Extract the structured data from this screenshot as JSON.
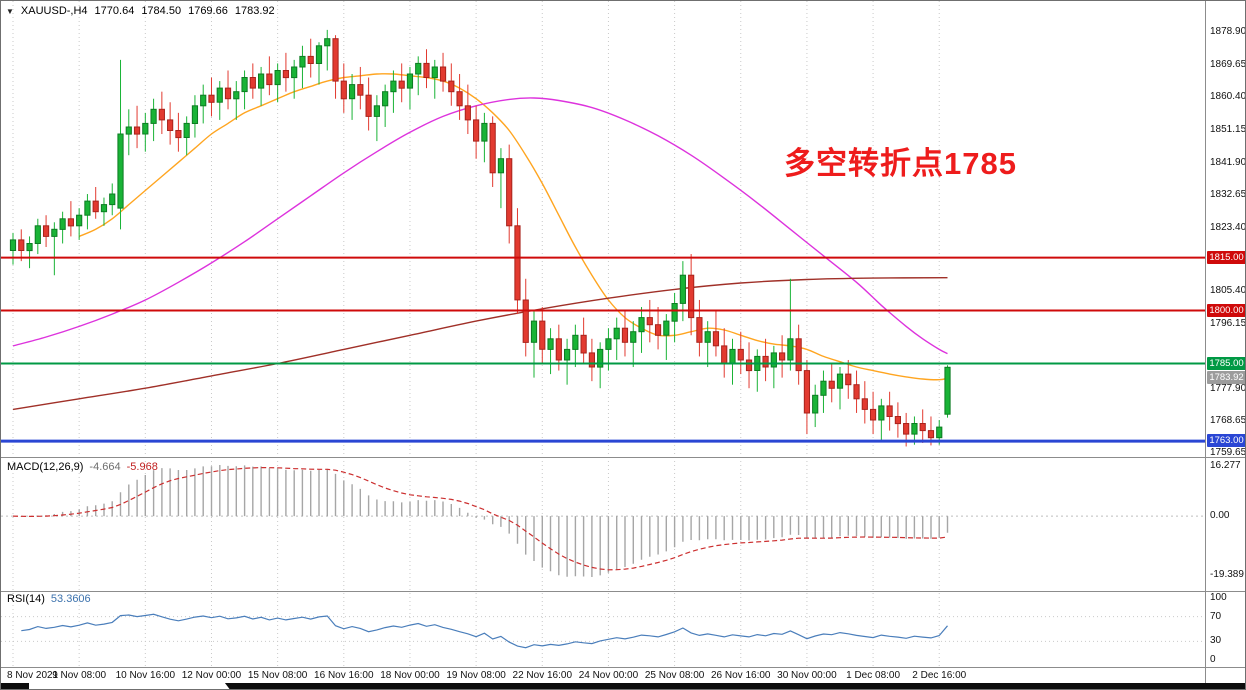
{
  "header": {
    "expander_icon": "▼",
    "symbol_timeframe": "XAUUSD-,H4",
    "open": "1770.64",
    "high": "1784.50",
    "low": "1769.66",
    "close": "1783.92"
  },
  "annotation": {
    "text": "多空转折点1785",
    "color": "#ee1c1c"
  },
  "colors": {
    "candle_up": "#19b336",
    "candle_up_border": "#0c7c22",
    "candle_down": "#e23a30",
    "candle_down_border": "#a8231c",
    "ma_fast": "#ffa520",
    "ma_mid": "#dd33dd",
    "ma_slow": "#a03028",
    "grid": "#c9c9c9",
    "macd_hist": "#a6a6a6",
    "macd_signal": "#cc2f2f",
    "rsi_line": "#4a7ebb"
  },
  "chart_data": {
    "type": "candlestick",
    "symbol": "XAUUSD-",
    "timeframe": "H4",
    "x_labels": [
      "8 Nov 2021",
      "9 Nov 08:00",
      "10 Nov 16:00",
      "12 Nov 00:00",
      "15 Nov 08:00",
      "16 Nov 16:00",
      "18 Nov 00:00",
      "19 Nov 08:00",
      "22 Nov 16:00",
      "24 Nov 00:00",
      "25 Nov 08:00",
      "26 Nov 16:00",
      "30 Nov 00:00",
      "1 Dec 08:00",
      "2 Dec 16:00"
    ],
    "price_axis_labels": [
      1878.9,
      1869.65,
      1860.4,
      1851.15,
      1841.9,
      1832.65,
      1823.4,
      1805.4,
      1796.15,
      1777.9,
      1768.65,
      1759.65
    ],
    "ylim": [
      1759.65,
      1878.9
    ],
    "grid": true,
    "levels": [
      {
        "value": 1815.0,
        "label": "1815.00",
        "color": "#cf0a0a",
        "width": 2
      },
      {
        "value": 1800.0,
        "label": "1800.00",
        "color": "#cf0a0a",
        "width": 2
      },
      {
        "value": 1785.0,
        "label": "1785.00",
        "color": "#009944",
        "width": 2
      },
      {
        "value": 1763.0,
        "label": "1763.00",
        "color": "#2a46d4",
        "width": 3
      }
    ],
    "current_price_badge": {
      "label": "1783.92",
      "color": "#9c9c9c"
    },
    "candles": [
      [
        1817,
        1822,
        1813,
        1820
      ],
      [
        1820,
        1823,
        1814,
        1817
      ],
      [
        1817,
        1821,
        1812,
        1819
      ],
      [
        1819,
        1826,
        1816,
        1824
      ],
      [
        1824,
        1827,
        1818,
        1821
      ],
      [
        1821,
        1825,
        1810,
        1823
      ],
      [
        1823,
        1828,
        1819,
        1826
      ],
      [
        1826,
        1831,
        1821,
        1824
      ],
      [
        1824,
        1829,
        1820,
        1827
      ],
      [
        1827,
        1833,
        1823,
        1831
      ],
      [
        1831,
        1835,
        1826,
        1828
      ],
      [
        1828,
        1832,
        1824,
        1830
      ],
      [
        1830,
        1836,
        1827,
        1833
      ],
      [
        1829,
        1871,
        1823,
        1850
      ],
      [
        1850,
        1857,
        1844,
        1852
      ],
      [
        1852,
        1858,
        1846,
        1850
      ],
      [
        1850,
        1856,
        1845,
        1853
      ],
      [
        1853,
        1860,
        1848,
        1857
      ],
      [
        1857,
        1862,
        1850,
        1854
      ],
      [
        1854,
        1859,
        1847,
        1851
      ],
      [
        1851,
        1856,
        1845,
        1849
      ],
      [
        1849,
        1855,
        1844,
        1853
      ],
      [
        1853,
        1861,
        1849,
        1858
      ],
      [
        1858,
        1864,
        1853,
        1861
      ],
      [
        1861,
        1866,
        1855,
        1859
      ],
      [
        1859,
        1865,
        1854,
        1863
      ],
      [
        1863,
        1868,
        1857,
        1860
      ],
      [
        1860,
        1865,
        1854,
        1862
      ],
      [
        1862,
        1868,
        1857,
        1866
      ],
      [
        1866,
        1870,
        1860,
        1863
      ],
      [
        1863,
        1869,
        1858,
        1867
      ],
      [
        1867,
        1872,
        1861,
        1864
      ],
      [
        1864,
        1870,
        1859,
        1868
      ],
      [
        1868,
        1873,
        1862,
        1866
      ],
      [
        1866,
        1871,
        1860,
        1869
      ],
      [
        1869,
        1875,
        1863,
        1872
      ],
      [
        1872,
        1877,
        1866,
        1870
      ],
      [
        1870,
        1876,
        1864,
        1875
      ],
      [
        1875,
        1879.5,
        1868,
        1877
      ],
      [
        1877,
        1878,
        1860,
        1865
      ],
      [
        1865,
        1870,
        1856,
        1860
      ],
      [
        1860,
        1867,
        1854,
        1864
      ],
      [
        1864,
        1869,
        1857,
        1861
      ],
      [
        1861,
        1866,
        1851,
        1855
      ],
      [
        1855,
        1861,
        1848,
        1858
      ],
      [
        1858,
        1864,
        1852,
        1862
      ],
      [
        1862,
        1868,
        1856,
        1865
      ],
      [
        1865,
        1870,
        1859,
        1863
      ],
      [
        1863,
        1869,
        1857,
        1867
      ],
      [
        1867,
        1872,
        1861,
        1870
      ],
      [
        1870,
        1874,
        1863,
        1866
      ],
      [
        1866,
        1871,
        1860,
        1869
      ],
      [
        1869,
        1873,
        1862,
        1865
      ],
      [
        1865,
        1870,
        1858,
        1862
      ],
      [
        1862,
        1867,
        1854,
        1858
      ],
      [
        1858,
        1864,
        1850,
        1854
      ],
      [
        1854,
        1858,
        1843,
        1848
      ],
      [
        1848,
        1856,
        1842,
        1853
      ],
      [
        1853,
        1855,
        1835,
        1839
      ],
      [
        1839,
        1846,
        1829,
        1843
      ],
      [
        1843,
        1847,
        1819,
        1824
      ],
      [
        1824,
        1829,
        1799,
        1803
      ],
      [
        1803,
        1809,
        1787,
        1791
      ],
      [
        1791,
        1800,
        1781,
        1797
      ],
      [
        1797,
        1801,
        1785,
        1789
      ],
      [
        1789,
        1795,
        1782,
        1792
      ],
      [
        1792,
        1796,
        1783,
        1786
      ],
      [
        1786,
        1792,
        1779,
        1789
      ],
      [
        1789,
        1796,
        1784,
        1793
      ],
      [
        1793,
        1798,
        1785,
        1788
      ],
      [
        1788,
        1792,
        1780,
        1784
      ],
      [
        1784,
        1791,
        1778,
        1789
      ],
      [
        1789,
        1795,
        1783,
        1792
      ],
      [
        1792,
        1798,
        1786,
        1795
      ],
      [
        1795,
        1800,
        1787,
        1791
      ],
      [
        1791,
        1797,
        1784,
        1794
      ],
      [
        1794,
        1801,
        1788,
        1798
      ],
      [
        1798,
        1803,
        1791,
        1796
      ],
      [
        1796,
        1801,
        1789,
        1793
      ],
      [
        1793,
        1799,
        1786,
        1797
      ],
      [
        1797,
        1805,
        1791,
        1802
      ],
      [
        1802,
        1814,
        1797,
        1810
      ],
      [
        1810,
        1816,
        1793,
        1798
      ],
      [
        1798,
        1803,
        1787,
        1791
      ],
      [
        1791,
        1797,
        1784,
        1794
      ],
      [
        1794,
        1800,
        1787,
        1790
      ],
      [
        1790,
        1795,
        1781,
        1785
      ],
      [
        1785,
        1792,
        1779,
        1789
      ],
      [
        1789,
        1794,
        1782,
        1786
      ],
      [
        1786,
        1791,
        1778,
        1783
      ],
      [
        1783,
        1789,
        1777,
        1787
      ],
      [
        1787,
        1792,
        1780,
        1784
      ],
      [
        1784,
        1790,
        1778,
        1788
      ],
      [
        1788,
        1793,
        1781,
        1786
      ],
      [
        1786,
        1809,
        1783,
        1792
      ],
      [
        1792,
        1796,
        1779,
        1783
      ],
      [
        1783,
        1786,
        1765,
        1771
      ],
      [
        1771,
        1779,
        1767,
        1776
      ],
      [
        1776,
        1783,
        1771,
        1780
      ],
      [
        1780,
        1785,
        1774,
        1778
      ],
      [
        1778,
        1784,
        1772,
        1782
      ],
      [
        1782,
        1786,
        1775,
        1779
      ],
      [
        1779,
        1783,
        1771,
        1775
      ],
      [
        1775,
        1780,
        1768,
        1772
      ],
      [
        1772,
        1777,
        1765,
        1769
      ],
      [
        1769,
        1775,
        1763,
        1773
      ],
      [
        1773,
        1777,
        1766,
        1770
      ],
      [
        1770,
        1774,
        1764,
        1768
      ],
      [
        1768,
        1771,
        1761.5,
        1765
      ],
      [
        1765,
        1770,
        1762,
        1768
      ],
      [
        1768,
        1772,
        1762.5,
        1766
      ],
      [
        1766,
        1770,
        1761.8,
        1764
      ],
      [
        1764,
        1769,
        1762,
        1767
      ],
      [
        1770.64,
        1784.5,
        1769.66,
        1783.92
      ]
    ],
    "moving_averages": [
      {
        "name": "ma-fast-orange",
        "color": "#ffa520",
        "points": [
          [
            8,
            1821
          ],
          [
            10,
            1823
          ],
          [
            12,
            1826
          ],
          [
            14,
            1830
          ],
          [
            16,
            1834
          ],
          [
            18,
            1838
          ],
          [
            20,
            1842
          ],
          [
            22,
            1846
          ],
          [
            24,
            1850
          ],
          [
            26,
            1853
          ],
          [
            28,
            1856
          ],
          [
            30,
            1858
          ],
          [
            32,
            1860
          ],
          [
            34,
            1862
          ],
          [
            36,
            1863.5
          ],
          [
            38,
            1865
          ],
          [
            40,
            1866
          ],
          [
            42,
            1866.5
          ],
          [
            44,
            1867
          ],
          [
            46,
            1867
          ],
          [
            48,
            1866.5
          ],
          [
            50,
            1866
          ],
          [
            52,
            1865
          ],
          [
            54,
            1863
          ],
          [
            56,
            1860
          ],
          [
            58,
            1856
          ],
          [
            60,
            1851
          ],
          [
            62,
            1844
          ],
          [
            64,
            1836
          ],
          [
            66,
            1827
          ],
          [
            68,
            1818
          ],
          [
            70,
            1810
          ],
          [
            72,
            1803
          ],
          [
            74,
            1798
          ],
          [
            76,
            1795
          ],
          [
            78,
            1793
          ],
          [
            80,
            1793
          ],
          [
            82,
            1794
          ],
          [
            84,
            1795
          ],
          [
            86,
            1794.5
          ],
          [
            88,
            1793
          ],
          [
            90,
            1791.5
          ],
          [
            92,
            1790.5
          ],
          [
            94,
            1790
          ],
          [
            96,
            1789
          ],
          [
            98,
            1787
          ],
          [
            100,
            1785.5
          ],
          [
            102,
            1784
          ],
          [
            104,
            1783
          ],
          [
            106,
            1782
          ],
          [
            108,
            1781.2
          ],
          [
            110,
            1780.6
          ],
          [
            112,
            1780.4
          ],
          [
            113,
            1780.8
          ]
        ]
      },
      {
        "name": "ma-mid-magenta",
        "color": "#dd33dd",
        "points": [
          [
            0,
            1790
          ],
          [
            4,
            1792.5
          ],
          [
            8,
            1795.5
          ],
          [
            12,
            1799
          ],
          [
            16,
            1803
          ],
          [
            20,
            1808
          ],
          [
            24,
            1813.5
          ],
          [
            28,
            1819.5
          ],
          [
            32,
            1826
          ],
          [
            36,
            1832.5
          ],
          [
            40,
            1839
          ],
          [
            44,
            1845
          ],
          [
            48,
            1850.5
          ],
          [
            52,
            1855
          ],
          [
            56,
            1858
          ],
          [
            60,
            1859.8
          ],
          [
            63,
            1860.2
          ],
          [
            66,
            1859.5
          ],
          [
            70,
            1857.5
          ],
          [
            74,
            1854
          ],
          [
            78,
            1849.5
          ],
          [
            82,
            1844
          ],
          [
            86,
            1837.5
          ],
          [
            90,
            1830.5
          ],
          [
            94,
            1823
          ],
          [
            98,
            1815.5
          ],
          [
            102,
            1808
          ],
          [
            105,
            1801.5
          ],
          [
            108,
            1795.5
          ],
          [
            110,
            1792
          ],
          [
            112,
            1789
          ],
          [
            113,
            1787.8
          ]
        ]
      },
      {
        "name": "ma-slow-darkred",
        "color": "#a03028",
        "points": [
          [
            0,
            1772
          ],
          [
            8,
            1775
          ],
          [
            16,
            1778
          ],
          [
            24,
            1781.5
          ],
          [
            32,
            1785
          ],
          [
            40,
            1789
          ],
          [
            48,
            1793
          ],
          [
            56,
            1797
          ],
          [
            64,
            1800.5
          ],
          [
            72,
            1803.5
          ],
          [
            80,
            1806
          ],
          [
            88,
            1807.8
          ],
          [
            96,
            1808.8
          ],
          [
            104,
            1809.2
          ],
          [
            113,
            1809.3
          ]
        ]
      }
    ],
    "macd": {
      "label": "MACD(12,26,9)",
      "value": "-4.664",
      "signal_value": "-5.968",
      "params": [
        12,
        26,
        9
      ],
      "axis_labels": [
        "16.277",
        "0.00",
        "-19.389"
      ],
      "ylim": [
        -19.389,
        16.277
      ]
    },
    "rsi": {
      "label": "RSI(14)",
      "value": "53.3606",
      "period": 14,
      "axis_labels": [
        100,
        70,
        30,
        0
      ],
      "guide_levels": [
        70,
        30
      ]
    }
  }
}
